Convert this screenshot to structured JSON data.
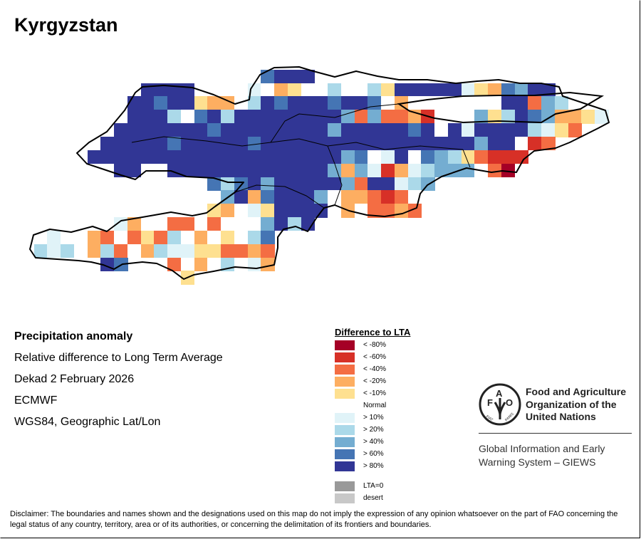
{
  "title": "Kyrgyzstan",
  "info": {
    "heading": "Precipitation anomaly",
    "subtitle": "Relative difference to Long Term Average",
    "period": "Dekad 2 February 2026",
    "source": "ECMWF",
    "projection": "WGS84, Geographic Lat/Lon"
  },
  "legend": {
    "title": "Difference to LTA",
    "items": [
      {
        "code": "a",
        "label": "< -80%",
        "color": "#a50026"
      },
      {
        "code": "b",
        "label": "< -60%",
        "color": "#d73027"
      },
      {
        "code": "c",
        "label": "< -40%",
        "color": "#f46d43"
      },
      {
        "code": "d",
        "label": "< -20%",
        "color": "#fdae61"
      },
      {
        "code": "e",
        "label": "< -10%",
        "color": "#fee090"
      },
      {
        "code": "n",
        "label": "Normal",
        "color": "#ffffff"
      },
      {
        "code": "f",
        "label": "> 10%",
        "color": "#e0f3f8"
      },
      {
        "code": "g",
        "label": "> 20%",
        "color": "#abd9e9"
      },
      {
        "code": "h",
        "label": "> 40%",
        "color": "#74add1"
      },
      {
        "code": "i",
        "label": "> 60%",
        "color": "#4575b4"
      },
      {
        "code": "j",
        "label": "> 80%",
        "color": "#313695"
      }
    ],
    "extra": [
      {
        "label": "LTA=0",
        "color": "#999999"
      },
      {
        "label": "desert",
        "color": "#c8c8c8"
      }
    ]
  },
  "anomaly_grid": [
    ".................ijjj",
    "........jjjj....fndenngnngejjjjjfedihjj",
    ".......jjijjeddngjijjjijjindnnnnnnnjjchg",
    ".......jjjgnijgjjjjjjjjhchccdbnnnhegjihddef",
    "......jjjjjjjijjjjjjjjhjjjjjijnjfjjjjgfec",
    ".....jjjjjijjjjjijjjjjjjjjjjjjjjjhjjnbc",
    "....jjjjjjjjjjjjjjjjjjjhinfjnihgecbbb",
    "......jj..jjjjjjjjjjjjhdhfbdfghhhnca",
    ".............igijhjjjjjhcjjfgh",
    "..............hjdijjjhnddcbcn",
    ".............ednfejjjjndnccdc",
    "......fdnnccncnnnhjgj",
    ".fnndcncecgndnengi",
    "gfgndgcndgffeeccdc",
    ".....ji...cndngnfd",
    "...........e"
  ],
  "logo": {
    "letters": "FAO",
    "motto": "FIAT PANIS",
    "org_line1": "Food and Agriculture",
    "org_line2": "Organization of the",
    "org_line3": "United Nations",
    "giews_line1": "Global Information and Early",
    "giews_line2": "Warning System – GIEWS"
  },
  "disclaimer": "Disclaimer: The boundaries and names shown and the designations used on this map do not imply the expression of any opinion whatsoever on the part of FAO concerning the legal status of any country, territory, area or of its authorities, or concerning the delimitation of its frontiers and boundaries."
}
